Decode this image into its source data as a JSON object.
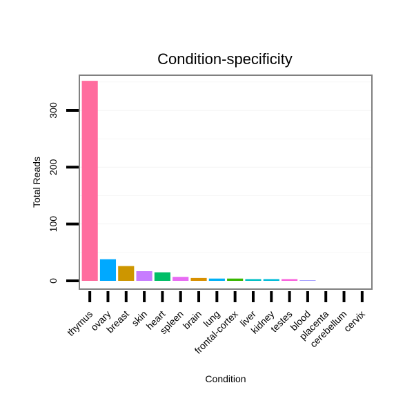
{
  "chart_data": {
    "type": "bar",
    "title": "Condition-specificity",
    "xlabel": "Condition",
    "ylabel": "Total Reads",
    "ylim": [
      -15,
      355
    ],
    "yticks": [
      0,
      100,
      200,
      300
    ],
    "grid": true,
    "categories": [
      "thymus",
      "ovary",
      "breast",
      "skin",
      "heart",
      "spleen",
      "brain",
      "lung",
      "frontal-cortex",
      "liver",
      "kidney",
      "testes",
      "blood",
      "placenta",
      "cerebellum",
      "cervix"
    ],
    "values": [
      352,
      38,
      26,
      17,
      15,
      7,
      5,
      4,
      4,
      3,
      3,
      3,
      1,
      0,
      0,
      0
    ],
    "colors": [
      "#FF6C9E",
      "#00A9FF",
      "#CD9600",
      "#C77CFF",
      "#00BE67",
      "#E76BF3",
      "#D89000",
      "#00B0F6",
      "#39B600",
      "#00BFC4",
      "#00BCD8",
      "#F962DD",
      "#9590FF",
      "#FF62BC",
      "#00C19A",
      "#7CAE00"
    ]
  }
}
